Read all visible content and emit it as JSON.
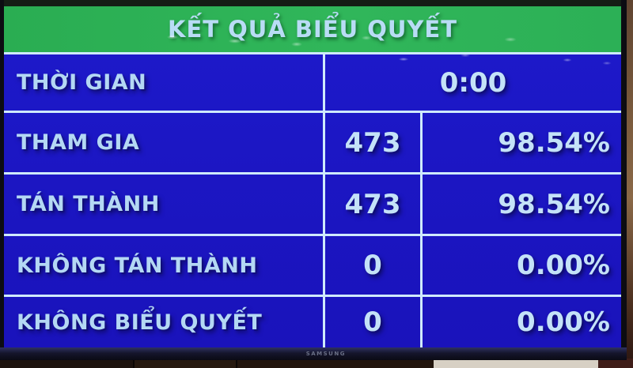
{
  "screen": {
    "title": "KẾT QUẢ BIỂU QUYẾT",
    "time_row": {
      "label": "THỜI GIAN",
      "value": "0:00"
    },
    "rows": [
      {
        "label": "THAM GIA",
        "count": "473",
        "percent": "98.54%"
      },
      {
        "label": "TÁN THÀNH",
        "count": "473",
        "percent": "98.54%"
      },
      {
        "label": "KHÔNG TÁN THÀNH",
        "count": "0",
        "percent": "0.00%"
      },
      {
        "label": "KHÔNG BIỂU QUYẾT",
        "count": "0",
        "percent": "0.00%"
      }
    ],
    "colors": {
      "header_bg": "#2db155",
      "board_bg": "#1b15c0",
      "text": "#b4d8f4",
      "grid_line": "#cfeafc"
    }
  },
  "tv": {
    "brand": "SAMSUNG"
  }
}
